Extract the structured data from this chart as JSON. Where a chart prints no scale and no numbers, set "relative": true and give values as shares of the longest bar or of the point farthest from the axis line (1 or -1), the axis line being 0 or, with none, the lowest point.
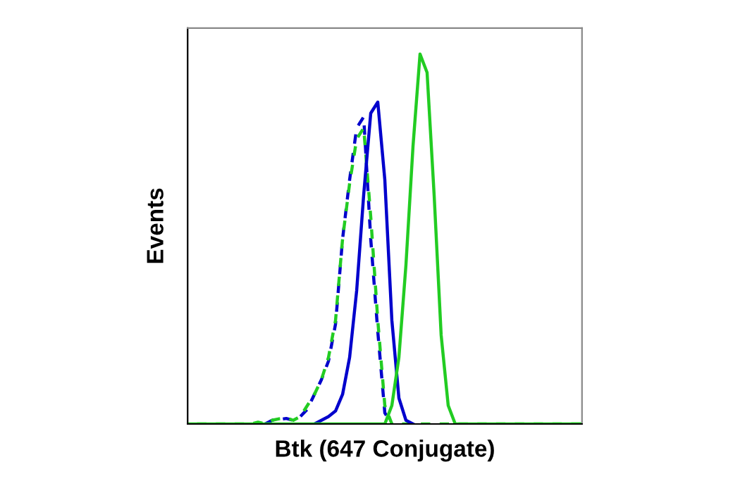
{
  "chart_data": {
    "type": "line",
    "relative": true,
    "xlabel": "Btk (647 Conjugate)",
    "ylabel": "Events",
    "categories": [
      null,
      null,
      null,
      null,
      null,
      null,
      null,
      null,
      null,
      null,
      null,
      null,
      null,
      null,
      null,
      null,
      null,
      null,
      null,
      null,
      null,
      null,
      null,
      null,
      null,
      null,
      null,
      null,
      null,
      null,
      null,
      null,
      null,
      null,
      null,
      null,
      null,
      null,
      null,
      null,
      null,
      null,
      null,
      null,
      null,
      null,
      null,
      null,
      null,
      null,
      null,
      null,
      null,
      null,
      null,
      null,
      null
    ],
    "series": [
      {
        "color": "#0000cc",
        "line_style": "dashed",
        "values": [
          null,
          null,
          null,
          null,
          null,
          null,
          null,
          null,
          null,
          null,
          null,
          0,
          0.01,
          0.012,
          0.015,
          0.01,
          0.02,
          0.04,
          0.08,
          0.12,
          0.17,
          0.27,
          0.5,
          0.66,
          0.8,
          0.83,
          0.5,
          0.25,
          0.03,
          0,
          null,
          null,
          null,
          null,
          null,
          null,
          null,
          null,
          null,
          null,
          null,
          null,
          null,
          null,
          null,
          null,
          null,
          null,
          null,
          null,
          null,
          null,
          null,
          null,
          null,
          null,
          null
        ]
      },
      {
        "color": "#22cc22",
        "line_style": "dashed",
        "values": [
          0,
          0,
          0,
          0,
          0,
          0,
          0,
          0,
          0,
          0,
          0.005,
          0,
          0.01,
          0.014,
          0.016,
          0.01,
          0.02,
          0.05,
          0.08,
          0.12,
          0.18,
          0.28,
          0.5,
          0.65,
          0.77,
          0.8,
          0.56,
          0.28,
          0.05,
          0,
          0,
          0,
          0,
          0,
          0,
          0,
          0,
          0,
          0,
          0,
          0,
          0,
          0,
          0,
          0,
          0,
          0,
          0,
          0,
          0,
          0,
          0,
          0,
          0,
          0,
          0,
          0
        ]
      },
      {
        "color": "#0000cc",
        "line_style": "solid",
        "values": [
          null,
          null,
          null,
          null,
          null,
          null,
          null,
          null,
          null,
          null,
          null,
          null,
          null,
          null,
          null,
          null,
          null,
          null,
          0,
          0.01,
          0.02,
          0.035,
          0.08,
          0.18,
          0.36,
          0.62,
          0.84,
          0.87,
          0.66,
          0.28,
          0.07,
          0.01,
          0,
          null,
          null,
          null,
          null,
          null,
          null,
          null,
          null,
          null,
          null,
          null,
          null,
          null,
          null,
          null,
          null,
          null,
          null,
          null,
          null,
          null,
          null,
          null,
          null
        ]
      },
      {
        "color": "#22cc22",
        "line_style": "solid",
        "values": [
          0,
          0,
          0,
          0,
          0,
          0,
          0,
          0,
          0,
          0,
          0,
          0,
          0,
          0,
          0,
          0,
          0,
          0,
          0,
          0,
          0,
          0,
          0,
          0,
          0,
          0,
          0,
          0,
          0,
          0.05,
          0.18,
          0.43,
          0.75,
          1.0,
          0.95,
          0.62,
          0.24,
          0.05,
          0,
          0,
          0,
          0,
          0,
          0,
          0,
          0,
          0,
          0,
          0,
          0,
          0,
          0,
          0,
          0,
          0,
          0,
          0
        ]
      }
    ]
  }
}
